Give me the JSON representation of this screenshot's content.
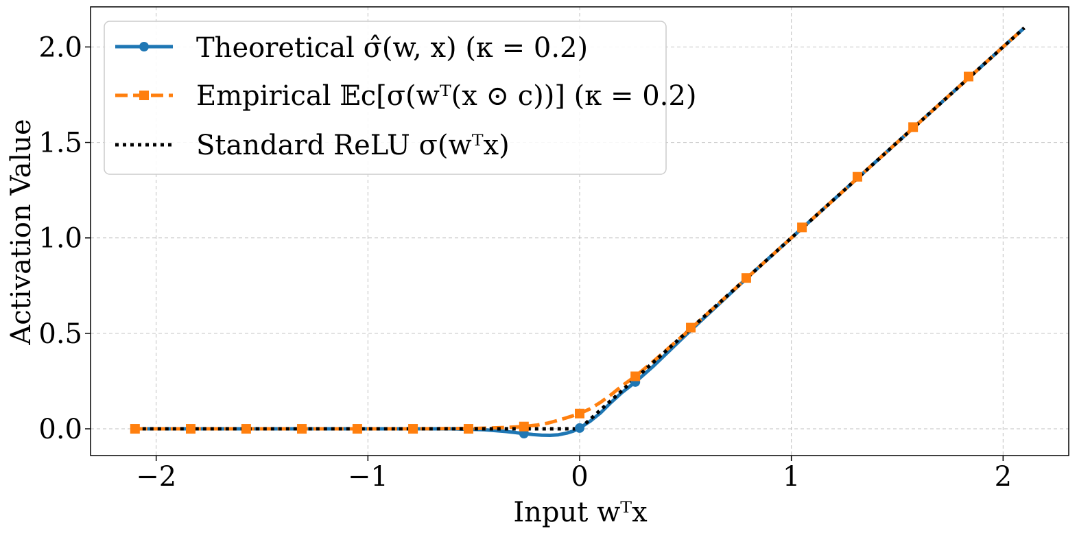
{
  "chart_data": {
    "type": "line",
    "xlabel": "Input wᵀx",
    "ylabel": "Activation Value",
    "xlim": [
      -2.31,
      2.31
    ],
    "ylim": [
      -0.14,
      2.21
    ],
    "xticks": [
      -2,
      -1,
      0,
      1,
      2
    ],
    "xtick_labels": [
      "−2",
      "−1",
      "0",
      "1",
      "2"
    ],
    "yticks": [
      0.0,
      0.5,
      1.0,
      1.5,
      2.0
    ],
    "ytick_labels": [
      "0.0",
      "0.5",
      "1.0",
      "1.5",
      "2.0"
    ],
    "grid": true,
    "legend_position": "top-left",
    "series": [
      {
        "name": "Theoretical σ̂(w, x) (κ = 0.2)",
        "color": "#1f77b4",
        "style": "solid",
        "marker": "circle",
        "x": [
          -2.1,
          -1.8,
          -1.5,
          -1.2,
          -0.9,
          -0.6,
          -0.45,
          -0.35,
          -0.3,
          -0.263,
          -0.22,
          -0.18,
          -0.14,
          -0.1,
          -0.06,
          -0.03,
          0.0,
          0.05,
          0.1,
          0.15,
          0.2,
          0.263,
          0.35,
          0.5,
          0.8,
          1.1,
          1.4,
          1.7,
          2.0,
          2.1
        ],
        "y": [
          0.0,
          0.0,
          0.0,
          0.0,
          0.0,
          0.0,
          -0.005,
          -0.014,
          -0.02,
          -0.025,
          -0.03,
          -0.033,
          -0.034,
          -0.031,
          -0.022,
          -0.012,
          0.004,
          0.04,
          0.085,
          0.14,
          0.19,
          0.245,
          0.33,
          0.49,
          0.8,
          1.1,
          1.4,
          1.7,
          2.0,
          2.1
        ],
        "marker_x": [
          -0.263,
          0.0,
          0.263
        ],
        "marker_y": [
          -0.025,
          0.004,
          0.245
        ]
      },
      {
        "name": "Empirical 𝔼c[σ(wᵀ(x ⊙ c))] (κ = 0.2)",
        "color": "#ff7f0e",
        "style": "dashed",
        "marker": "square",
        "x": [
          -2.1,
          -1.5,
          -0.8,
          -0.5,
          -0.35,
          -0.263,
          -0.2,
          -0.15,
          -0.1,
          -0.05,
          0.0,
          0.05,
          0.1,
          0.15,
          0.2,
          0.263,
          0.35,
          0.5,
          0.8,
          1.1,
          1.4,
          1.7,
          2.0,
          2.1
        ],
        "y": [
          0.0,
          0.0,
          0.0,
          0.002,
          0.007,
          0.012,
          0.02,
          0.03,
          0.045,
          0.062,
          0.08,
          0.105,
          0.14,
          0.18,
          0.225,
          0.275,
          0.355,
          0.5,
          0.8,
          1.1,
          1.4,
          1.7,
          2.0,
          2.1
        ],
        "marker_x": [
          -2.1,
          -1.837,
          -1.575,
          -1.312,
          -1.05,
          -0.787,
          -0.525,
          -0.263,
          0.0,
          0.263,
          0.525,
          0.787,
          1.05,
          1.312,
          1.575,
          1.837
        ],
        "marker_y": [
          0.0,
          0.0,
          0.0,
          0.0,
          0.0,
          0.0,
          0.0,
          0.012,
          0.08,
          0.275,
          0.53,
          0.79,
          1.055,
          1.32,
          1.58,
          1.845
        ]
      },
      {
        "name": "Standard ReLU σ(wᵀx)",
        "color": "#000000",
        "style": "dotted",
        "marker": "none",
        "x": [
          -2.1,
          0.0,
          2.1
        ],
        "y": [
          0.0,
          0.0,
          2.1
        ]
      }
    ]
  }
}
